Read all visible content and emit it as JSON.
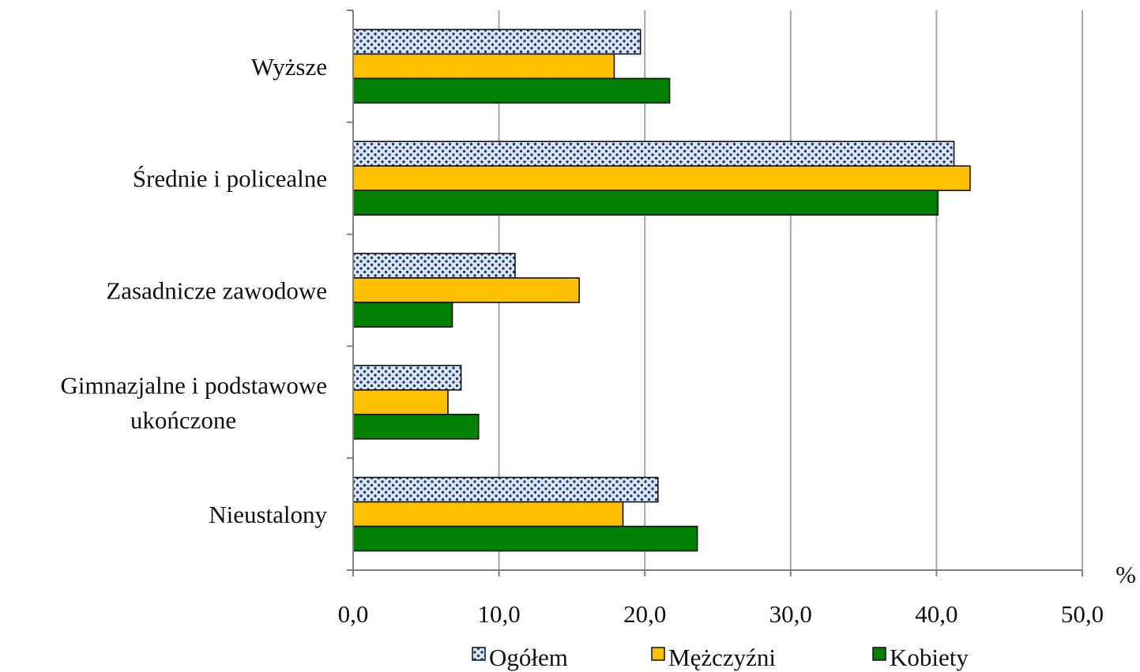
{
  "chart_data": {
    "type": "bar",
    "orientation": "horizontal",
    "categories": [
      "Wyższe",
      "Średnie i policealne",
      "Zasadnicze zawodowe",
      "Gimnazjalne i podstawowe ukończone",
      "Nieustalony"
    ],
    "category_lines": [
      [
        "Wyższe"
      ],
      [
        "Średnie i policealne"
      ],
      [
        "Zasadnicze zawodowe"
      ],
      [
        "Gimnazjalne i podstawowe",
        "ukończone"
      ],
      [
        "Nieustalony"
      ]
    ],
    "series": [
      {
        "name": "Ogółem",
        "values": [
          19.7,
          41.2,
          11.1,
          7.4,
          20.9
        ],
        "color": "#dbe6f5",
        "pattern": "dots"
      },
      {
        "name": "Mężczyźni",
        "values": [
          17.9,
          42.3,
          15.5,
          6.5,
          18.5
        ],
        "color": "#ffc000",
        "pattern": "solid"
      },
      {
        "name": "Kobiety",
        "values": [
          21.7,
          40.1,
          6.8,
          8.6,
          23.6
        ],
        "color": "#008000",
        "pattern": "solid"
      }
    ],
    "xlim": [
      0,
      50
    ],
    "xticks": [
      "0,0",
      "10,0",
      "20,0",
      "30,0",
      "40,0",
      "50,0"
    ],
    "xunit": "%",
    "grid": true,
    "legend": "bottom"
  }
}
